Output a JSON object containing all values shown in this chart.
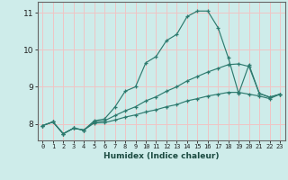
{
  "xlabel": "Humidex (Indice chaleur)",
  "background_color": "#ceecea",
  "grid_color": "#f0c4c4",
  "line_color": "#2d7a6e",
  "xlim_min": -0.5,
  "xlim_max": 23.5,
  "ylim_min": 7.55,
  "ylim_max": 11.3,
  "xticks": [
    0,
    1,
    2,
    3,
    4,
    5,
    6,
    7,
    8,
    9,
    10,
    11,
    12,
    13,
    14,
    15,
    16,
    17,
    18,
    19,
    20,
    21,
    22,
    23
  ],
  "yticks": [
    8,
    9,
    10,
    11
  ],
  "series": [
    {
      "x": [
        0,
        1,
        2,
        3,
        4,
        5,
        6,
        7,
        8,
        9,
        10,
        11,
        12,
        13,
        14,
        15,
        16,
        17,
        18,
        19,
        20,
        21,
        22,
        23
      ],
      "y": [
        7.95,
        8.05,
        7.73,
        7.88,
        7.83,
        8.08,
        8.13,
        8.45,
        8.88,
        9.0,
        9.65,
        9.82,
        10.25,
        10.42,
        10.9,
        11.05,
        11.05,
        10.6,
        9.78,
        8.82,
        9.6,
        8.82,
        8.72,
        8.8
      ]
    },
    {
      "x": [
        0,
        1,
        2,
        3,
        4,
        5,
        6,
        7,
        8,
        9,
        10,
        11,
        12,
        13,
        14,
        15,
        16,
        17,
        18,
        19,
        20,
        21,
        22,
        23
      ],
      "y": [
        7.95,
        8.05,
        7.73,
        7.88,
        7.83,
        8.05,
        8.08,
        8.22,
        8.35,
        8.46,
        8.62,
        8.73,
        8.88,
        9.0,
        9.16,
        9.28,
        9.4,
        9.5,
        9.6,
        9.62,
        9.55,
        8.82,
        8.72,
        8.8
      ]
    },
    {
      "x": [
        0,
        1,
        2,
        3,
        4,
        5,
        6,
        7,
        8,
        9,
        10,
        11,
        12,
        13,
        14,
        15,
        16,
        17,
        18,
        19,
        20,
        21,
        22,
        23
      ],
      "y": [
        7.95,
        8.05,
        7.73,
        7.88,
        7.83,
        8.02,
        8.03,
        8.1,
        8.18,
        8.24,
        8.32,
        8.38,
        8.46,
        8.52,
        8.62,
        8.68,
        8.75,
        8.8,
        8.85,
        8.85,
        8.8,
        8.75,
        8.68,
        8.8
      ]
    }
  ]
}
